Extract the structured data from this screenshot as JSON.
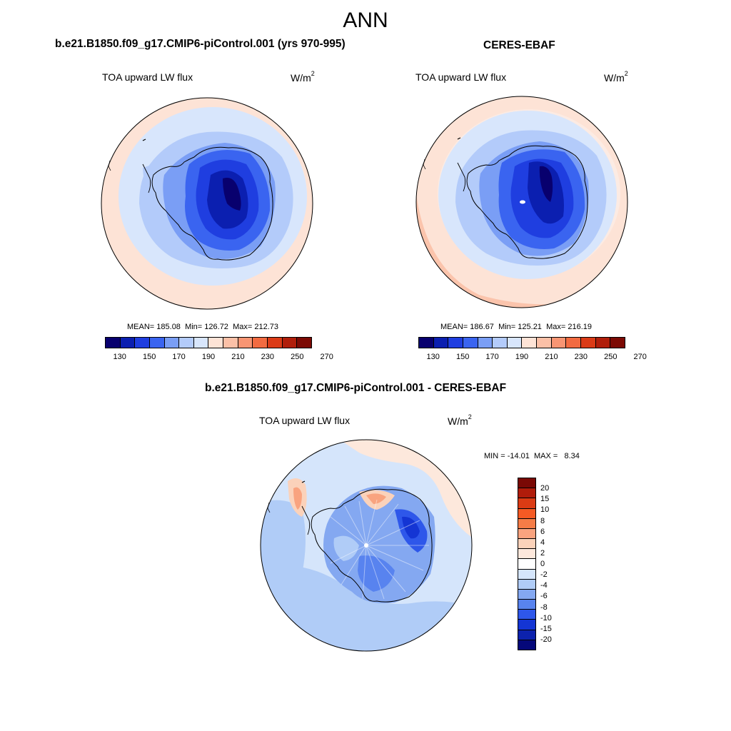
{
  "main_title": "ANN",
  "colors": {
    "abs_levels": [
      "#08006e",
      "#0b1fb0",
      "#1f3ee0",
      "#3a64f0",
      "#7a9ef5",
      "#b3cbfa",
      "#d8e6fc",
      "#fde3d6",
      "#fbc0a7",
      "#f89573",
      "#f26b41",
      "#db3b17",
      "#b01e0b",
      "#7c0a04"
    ],
    "diff_levels": [
      "#7a0905",
      "#b01c0b",
      "#db3b14",
      "#f55a24",
      "#f57c47",
      "#f9a37f",
      "#fbd2ba",
      "#fde8dc",
      "#ffffff",
      "#d5e5fb",
      "#b0ccf7",
      "#84a8f1",
      "#5883ef",
      "#2e57ea",
      "#1435d4",
      "#0c22ad",
      "#05087a"
    ],
    "coast": "#000000"
  },
  "panels": [
    {
      "case": "b.e21.B1850.f09_g17.CMIP6-piControl.001 (yrs 970-995)",
      "variable": "TOA upward LW flux",
      "units_base": "W/m",
      "units_exp": "2",
      "mean_label": "MEAN=",
      "mean": "185.08",
      "min_label": "Min=",
      "min": "126.72",
      "max_label": "Max=",
      "max": "212.73",
      "tick_labels": [
        "130",
        "150",
        "170",
        "190",
        "210",
        "230",
        "250",
        "270"
      ]
    },
    {
      "case": "CERES-EBAF",
      "variable": "TOA upward LW flux",
      "units_base": "W/m",
      "units_exp": "2",
      "mean_label": "MEAN=",
      "mean": "186.67",
      "min_label": "Min=",
      "min": "125.21",
      "max_label": "Max=",
      "max": "216.19",
      "tick_labels": [
        "130",
        "150",
        "170",
        "190",
        "210",
        "230",
        "250",
        "270"
      ]
    }
  ],
  "diff_panel": {
    "title": "b.e21.B1850.f09_g17.CMIP6-piControl.001 - CERES-EBAF",
    "variable": "TOA upward LW flux",
    "units_base": "W/m",
    "units_exp": "2",
    "min_max_label": "MIN = -14.01  MAX =   8.34",
    "tick_labels": [
      "20",
      "15",
      "10",
      "8",
      "6",
      "4",
      "2",
      "0",
      "-2",
      "-4",
      "-6",
      "-8",
      "-10",
      "-15",
      "-20"
    ]
  }
}
